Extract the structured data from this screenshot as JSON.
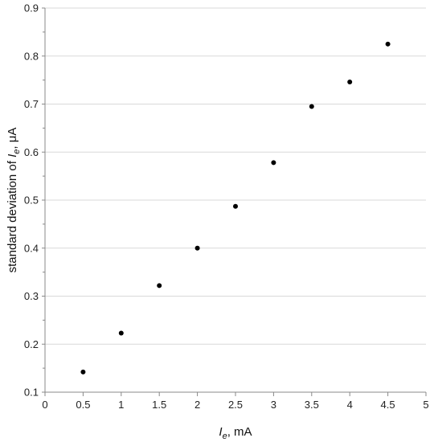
{
  "chart_data": {
    "type": "scatter",
    "x": [
      0.5,
      1,
      1.5,
      2,
      2.5,
      3,
      3.5,
      4,
      4.5
    ],
    "y": [
      0.142,
      0.223,
      0.322,
      0.4,
      0.487,
      0.578,
      0.695,
      0.746,
      0.825
    ],
    "xlim": [
      0,
      5
    ],
    "ylim": [
      0.1,
      0.9
    ],
    "xticks": [
      0,
      0.5,
      1,
      1.5,
      2,
      2.5,
      3,
      3.5,
      4,
      4.5,
      5
    ],
    "yticks": [
      0.1,
      0.2,
      0.3,
      0.4,
      0.5,
      0.6,
      0.7,
      0.8,
      0.9
    ],
    "xtick_labels": [
      "0",
      "0.5",
      "1",
      "1.5",
      "2",
      "2.5",
      "3",
      "3.5",
      "4",
      "4.5",
      "5"
    ],
    "ytick_labels": [
      "0.1",
      "0.2",
      "0.3",
      "0.4",
      "0.5",
      "0.6",
      "0.7",
      "0.8",
      "0.9"
    ],
    "xlabel": {
      "main": "I",
      "sub": "e",
      "rest": ", mA"
    },
    "ylabel": {
      "pre": "standard deviation of ",
      "main": "I",
      "sub": "e",
      "rest": ", μA"
    },
    "grid": "horizontal",
    "legend": "none",
    "marker_color": "#000000"
  }
}
